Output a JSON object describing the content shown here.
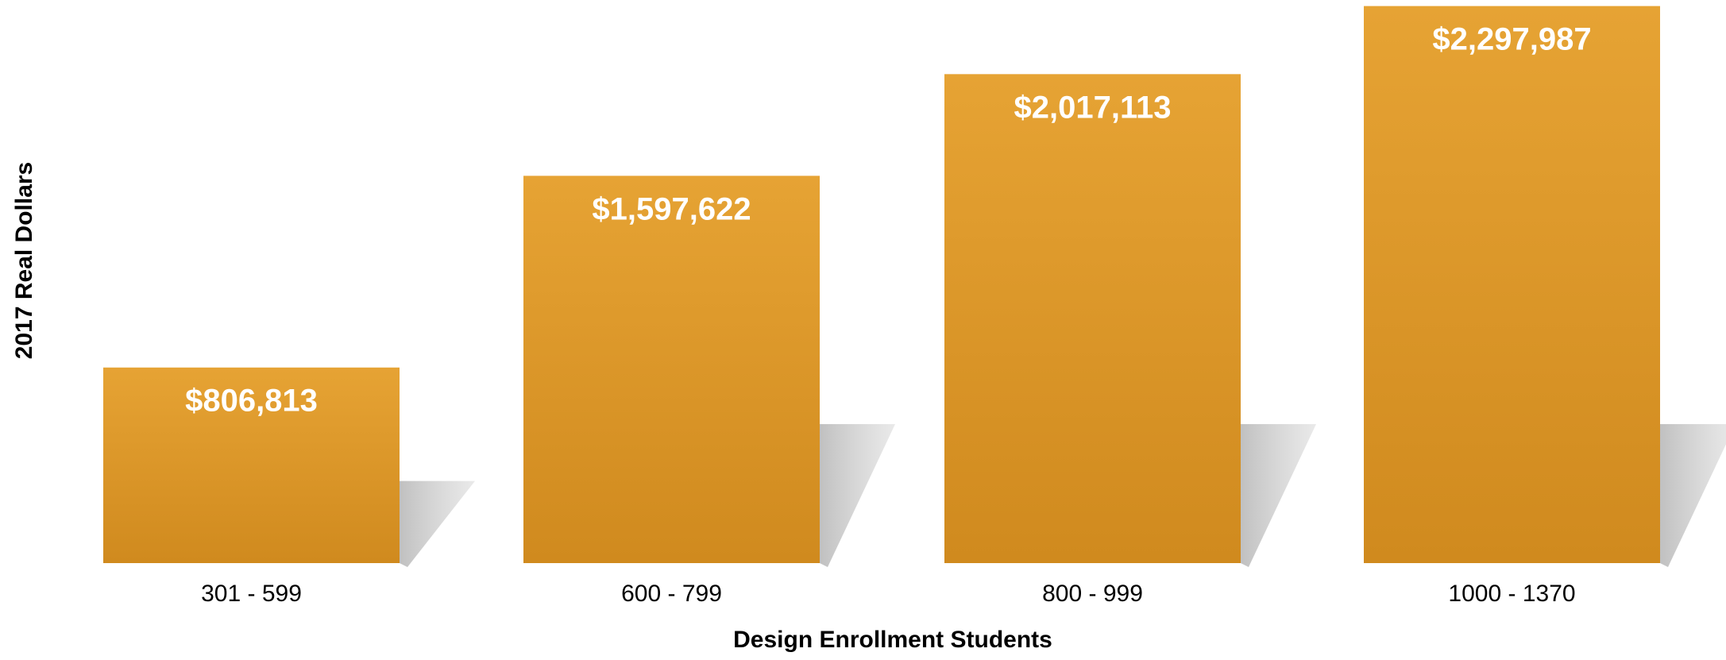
{
  "chart_data": {
    "type": "bar",
    "title": "",
    "xlabel": "Design Enrollment Students",
    "ylabel": "2017 Real Dollars",
    "categories": [
      "301 - 599",
      "600 - 799",
      "800 - 999",
      "1000 - 1370"
    ],
    "values": [
      806813,
      1597622,
      2017113,
      2297987
    ],
    "value_labels": [
      "$806,813",
      "$1,597,622",
      "$2,017,113",
      "$2,297,987"
    ],
    "ylim": [
      0,
      2300000
    ],
    "grid": false,
    "legend": "none",
    "colors": {
      "bar_top": "#E6A334",
      "bar_bottom": "#D08A1E",
      "shadow": "#CFCFCF",
      "value_text": "#FFFFFF",
      "axis_text": "#000000"
    }
  }
}
